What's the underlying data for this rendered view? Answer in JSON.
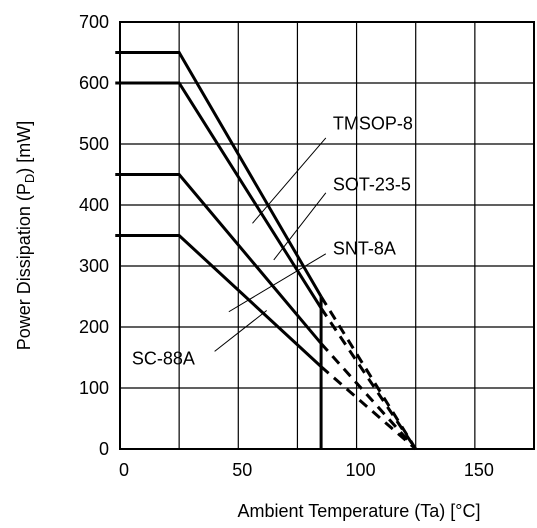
{
  "chart_data": {
    "type": "line",
    "xlabel": "Ambient Temperature (Ta) [°C]",
    "ylabel_parts": [
      "Power Dissipation (P",
      "D",
      ") [mW]"
    ],
    "xlim": [
      0,
      175
    ],
    "ylim": [
      0,
      700
    ],
    "xticks": [
      0,
      50,
      100,
      150
    ],
    "yticks": [
      0,
      100,
      200,
      300,
      400,
      500,
      600,
      700
    ],
    "grid": true,
    "series": [
      {
        "name": "TMSOP-8",
        "solid": [
          [
            -2,
            650
          ],
          [
            25,
            650
          ],
          [
            85,
            250
          ]
        ],
        "dashed": [
          [
            85,
            250
          ],
          [
            125,
            0
          ]
        ]
      },
      {
        "name": "SOT-23-5",
        "solid": [
          [
            -2,
            600
          ],
          [
            25,
            600
          ],
          [
            85,
            231
          ]
        ],
        "dashed": [
          [
            85,
            231
          ],
          [
            125,
            0
          ]
        ]
      },
      {
        "name": "SNT-8A",
        "solid": [
          [
            -2,
            450
          ],
          [
            25,
            450
          ],
          [
            85,
            173
          ]
        ],
        "dashed": [
          [
            85,
            173
          ],
          [
            125,
            0
          ]
        ]
      },
      {
        "name": "SC-88A",
        "solid": [
          [
            -2,
            350
          ],
          [
            25,
            350
          ],
          [
            85,
            135
          ]
        ],
        "dashed": [
          [
            85,
            135
          ],
          [
            125,
            0
          ]
        ]
      }
    ],
    "vertical_cutoff": {
      "x": 85,
      "y_top": 250
    },
    "annotations": [
      {
        "text": "TMSOP-8",
        "x": 90,
        "y": 535,
        "line_from": [
          87,
          510
        ],
        "line_to": [
          56,
          370
        ]
      },
      {
        "text": "SOT-23-5",
        "x": 90,
        "y": 435,
        "line_from": [
          87,
          420
        ],
        "line_to": [
          65,
          310
        ]
      },
      {
        "text": "SNT-8A",
        "x": 90,
        "y": 330,
        "line_from": [
          87,
          320
        ],
        "line_to": [
          46,
          225
        ]
      },
      {
        "text": "SC-88A",
        "x": 5,
        "y": 150,
        "line_from": [
          40,
          160
        ],
        "line_to": [
          62,
          227
        ]
      }
    ]
  }
}
